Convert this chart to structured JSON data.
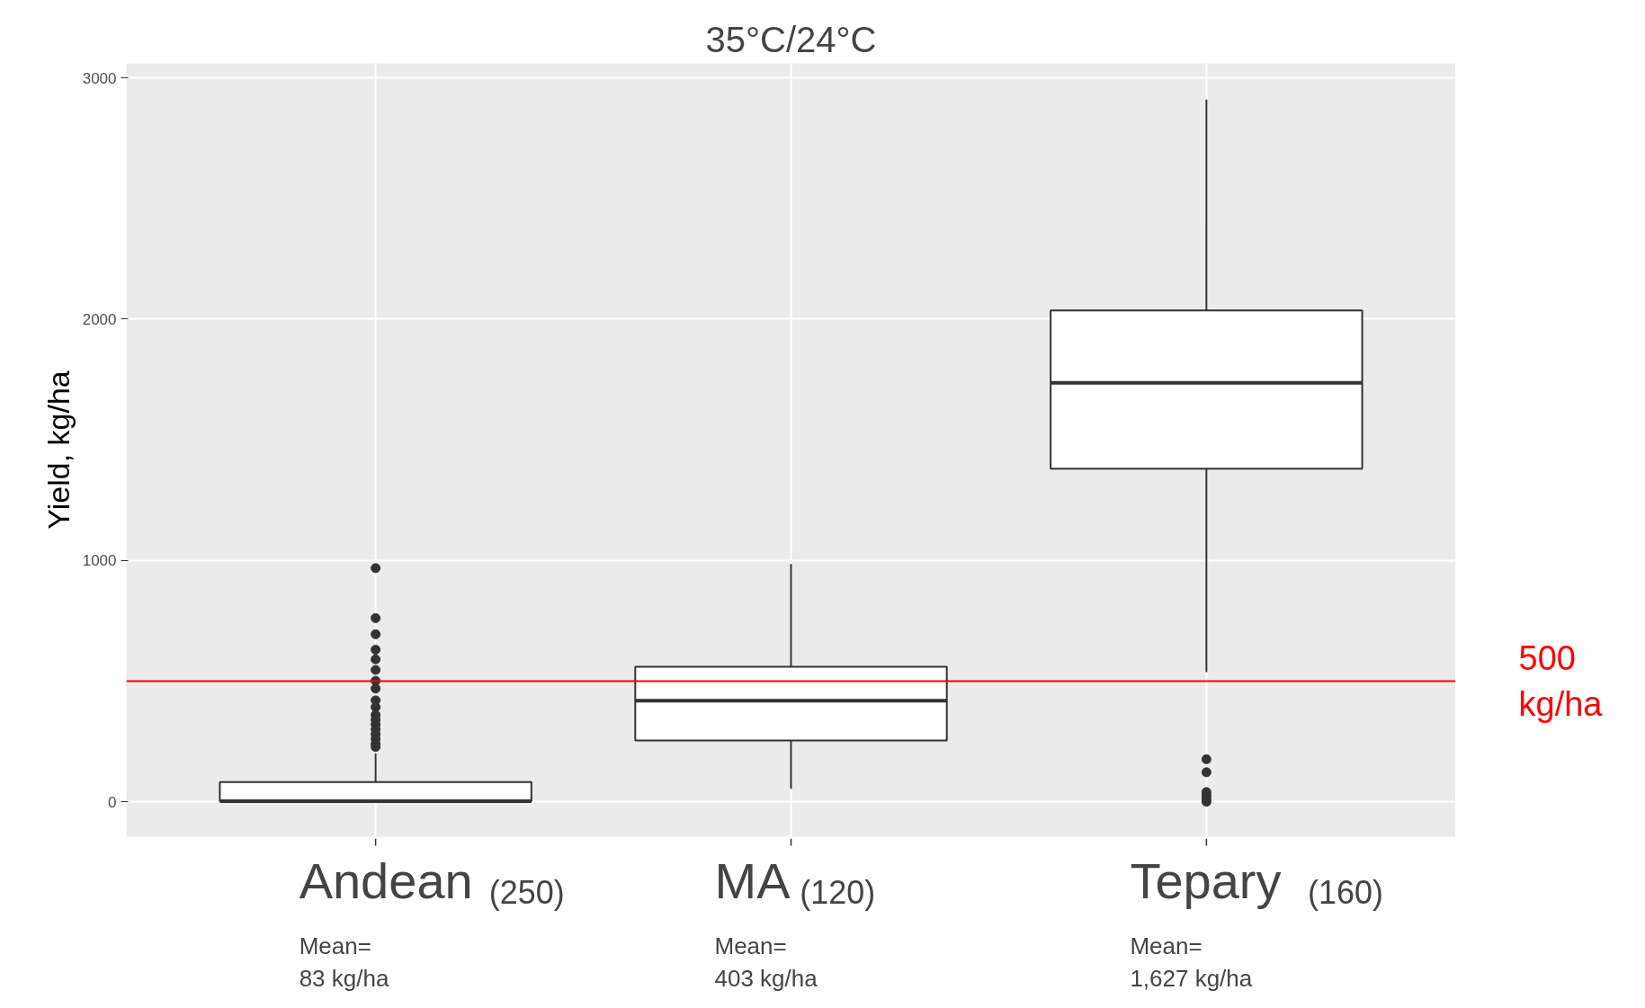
{
  "chart_data": {
    "type": "box",
    "title": "35°C/24°C",
    "ylabel": "Yield, kg/ha",
    "categories": [
      "Andean",
      "MA",
      "Tepary"
    ],
    "boxes": [
      {
        "low": 0,
        "q1": 2,
        "median": 2,
        "q3": 81,
        "high": 201,
        "outliers": [
          968,
          761,
          694,
          630,
          590,
          546,
          501,
          469,
          420,
          392,
          360,
          340,
          320,
          300,
          280,
          260,
          240,
          227
        ]
      },
      {
        "low": 53,
        "q1": 254,
        "median": 419,
        "q3": 559,
        "high": 985
      },
      {
        "low": 537,
        "q1": 1380,
        "median": 1736,
        "q3": 2036,
        "high": 2910,
        "outliers": [
          176,
          122,
          40,
          25,
          10,
          0
        ]
      }
    ],
    "ylim": [
      -145,
      3060
    ],
    "yticks": [
      0,
      1000,
      2000,
      3000
    ],
    "grid": true,
    "ref_lines": [
      {
        "axis": "y",
        "value": 500,
        "label": "500\nkg/ha",
        "color": "#ff0000"
      }
    ],
    "annotations": [
      "(250)",
      "Mean=\n83 kg/ha",
      "(120)",
      "Mean=\n403 kg/ha",
      "(160)",
      "Mean=\n1,627 kg/ha"
    ]
  }
}
